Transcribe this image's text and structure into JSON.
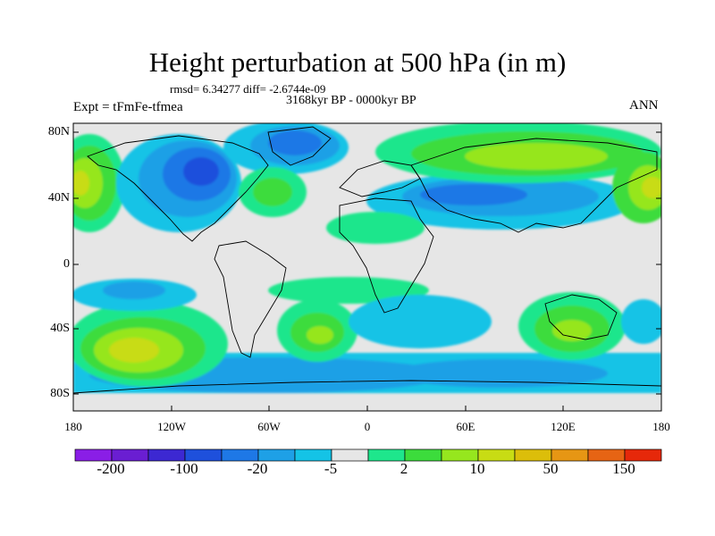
{
  "title": "Height perturbation at 500 hPa (in m)",
  "stats": "rmsd= 6.34277 diff= -2.6744e-09",
  "period": "3168kyr BP - 0000kyr BP",
  "experiment": "Expt = tFmFe-tfmea",
  "season": "ANN",
  "lat_ticks": [
    "80N",
    "40N",
    "0",
    "40S",
    "80S"
  ],
  "lon_ticks": [
    "180",
    "120W",
    "60W",
    "0",
    "60E",
    "120E",
    "180"
  ],
  "colorbar": {
    "labels": [
      "-200",
      "-100",
      "-20",
      "-5",
      "2",
      "10",
      "50",
      "150"
    ],
    "colors": [
      "#8a1ee6",
      "#6a1ed2",
      "#3c28d2",
      "#1e50dc",
      "#1e78e6",
      "#1ea0e6",
      "#14c3e6",
      "#e6e6e6",
      "#1ee68c",
      "#3cdc3c",
      "#96e61e",
      "#c8dc14",
      "#dcbe0a",
      "#e69614",
      "#e66414",
      "#e6280a"
    ]
  }
}
